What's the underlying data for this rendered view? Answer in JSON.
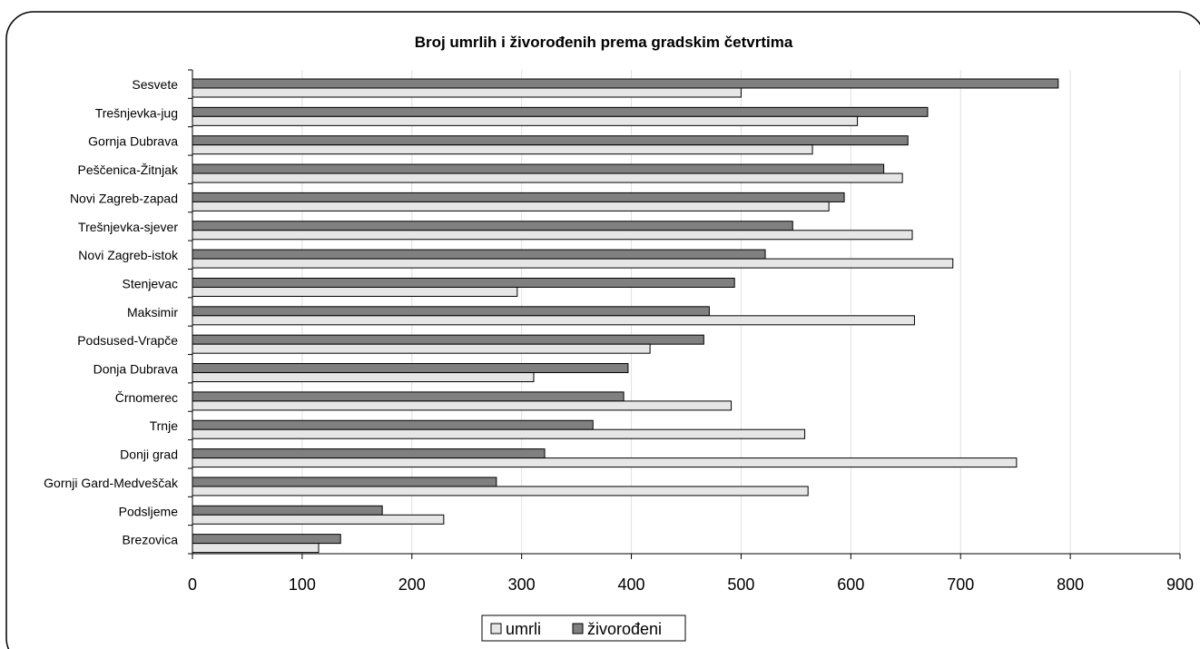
{
  "chart_data": {
    "type": "bar",
    "orientation": "horizontal",
    "title": "Broj umrlih i živorođenih prema gradskim četvrtima",
    "categories": [
      "Sesvete",
      "Trešnjevka-jug",
      "Gornja Dubrava",
      "Peščenica-Žitnjak",
      "Novi Zagreb-zapad",
      "Trešnjevka-sjever",
      "Novi Zagreb-istok",
      "Stenjevac",
      "Maksimir",
      "Podsused-Vrapče",
      "Donja Dubrava",
      "Črnomerec",
      "Trnje",
      "Donji grad",
      "Gornji Gard-Medveščak",
      "Podsljeme",
      "Brezovica"
    ],
    "category_labels": [
      "Sesvete",
      "Trešnjevka-jug",
      "Gornja Dubrava",
      "Peščenica-Žitnjak",
      "Novi Zagreb-zapad",
      "Trešnjevka-sjever",
      "Novi Zagreb-istok",
      "Stenjevac",
      "Maksimir",
      "Podsused-Vrapče",
      "Donja Dubrava",
      "Črnomerec",
      "Trnje",
      "Donji grad",
      "Gornji Gard-Medveščak",
      "Podsljeme",
      "Brezovica"
    ],
    "series": [
      {
        "name": "živorođeni",
        "color": "#808080",
        "values": [
          789,
          670,
          652,
          630,
          594,
          547,
          522,
          494,
          471,
          466,
          397,
          393,
          365,
          321,
          277,
          173,
          135
        ]
      },
      {
        "name": "umrli",
        "color": "#e6e6e6",
        "values": [
          500,
          606,
          565,
          647,
          580,
          656,
          693,
          296,
          658,
          417,
          311,
          491,
          558,
          751,
          561,
          229,
          115
        ]
      }
    ],
    "xlim": [
      0,
      900
    ],
    "xticks": [
      0,
      100,
      200,
      300,
      400,
      500,
      600,
      700,
      800,
      900
    ],
    "grid": "vertical",
    "legend": {
      "position": "bottom",
      "entries": [
        "umrli",
        "živorođeni"
      ]
    }
  }
}
